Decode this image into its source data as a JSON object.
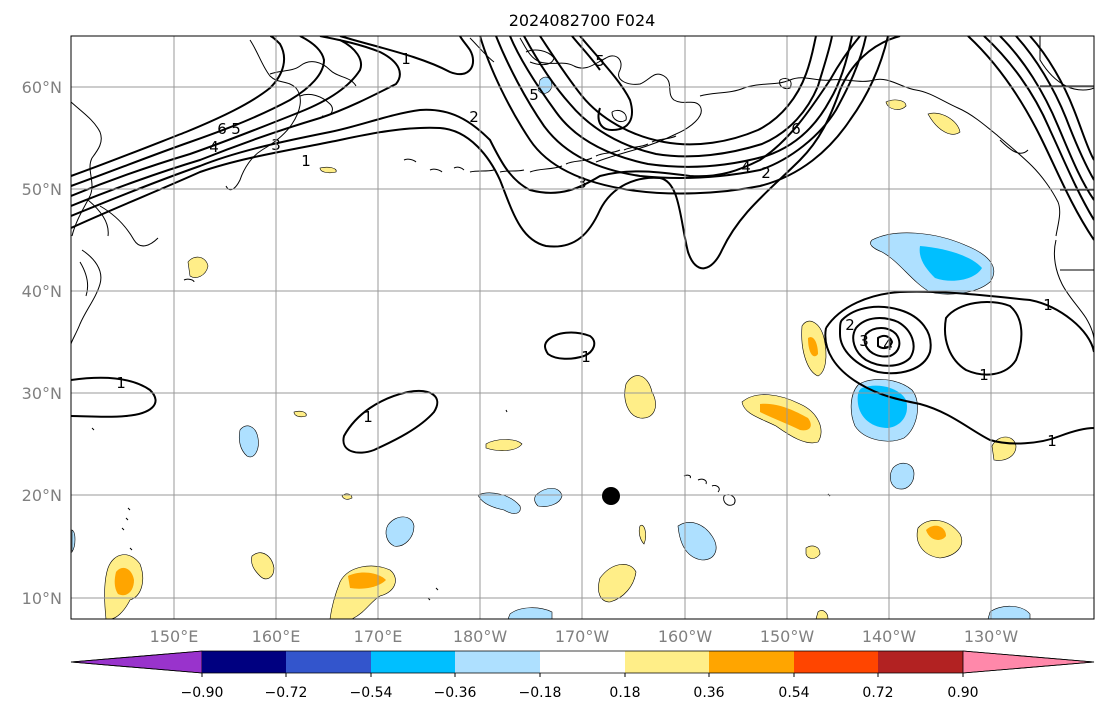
{
  "title": "2024082700 F024",
  "lat_labels": [
    "60°N",
    "50°N",
    "40°N",
    "30°N",
    "20°N",
    "10°N"
  ],
  "lon_labels": [
    "150°E",
    "160°E",
    "170°E",
    "180°W",
    "170°W",
    "160°W",
    "150°W",
    "140°W",
    "130°W"
  ],
  "colorbar": {
    "tick_labels": [
      "−0.90",
      "−0.72",
      "−0.54",
      "−0.36",
      "−0.18",
      "0.18",
      "0.36",
      "0.54",
      "0.72",
      "0.90"
    ],
    "colors": [
      "#9933cc",
      "#000080",
      "#3355cc",
      "#00bfff",
      "#aee0ff",
      "#ffffff",
      "#ffee88",
      "#ffa500",
      "#ff4500",
      "#b22222",
      "#ff88aa"
    ]
  },
  "contour_labels": [
    "1",
    "2",
    "3",
    "4",
    "5",
    "6",
    "1",
    "2",
    "3",
    "4",
    "6",
    "1",
    "1",
    "1",
    "2",
    "3",
    "4",
    "1",
    "1",
    "1",
    "5",
    "5"
  ],
  "marker": {
    "lat": 20,
    "lon": -166,
    "label": ""
  },
  "colors": {
    "land_line": "#000000",
    "grid": "#999999",
    "tick_text": "#808080",
    "contour": "#000000"
  }
}
